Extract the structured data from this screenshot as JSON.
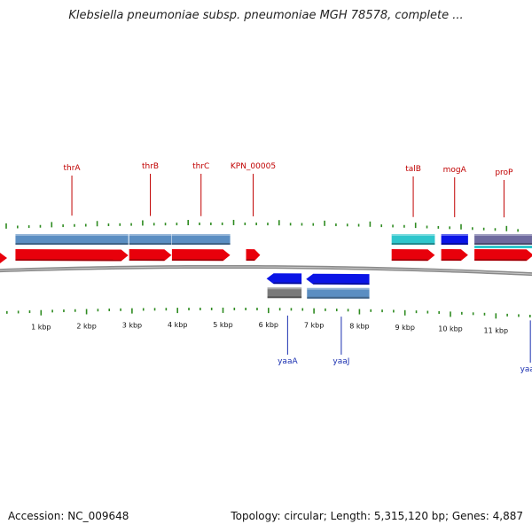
{
  "title": "Klebsiella pneumoniae subsp. pneumoniae MGH 78578, complete ...",
  "footer": {
    "accession": "Accession: NC_009648",
    "summary": "Topology: circular; Length: 5,315,120 bp; Genes: 4,887"
  },
  "colors": {
    "forward_gene": "#e8000b",
    "reverse_gene": "#0a14e6",
    "cds_steelblue": "#5b8ec2",
    "cds_cyan": "#2ec6cc",
    "cds_gray": "#7a7a7a",
    "trna_purple": "#6e6a9e",
    "label_forward": "#c00000",
    "label_reverse": "#1a2fb0",
    "backbone": "#8a8a8a",
    "tick": "#2e8b20"
  },
  "scale": {
    "labels": [
      "1 kbp",
      "2 kbp",
      "3 kbp",
      "4 kbp",
      "5 kbp",
      "6 kbp",
      "7 kbp",
      "8 kbp",
      "9 kbp",
      "10 kbp",
      "11 kbp"
    ]
  },
  "genes_forward": [
    {
      "name": "thrA",
      "start": 0.34,
      "end": 2.82
    },
    {
      "name": "thrB",
      "start": 2.84,
      "end": 3.77
    },
    {
      "name": "thrC",
      "start": 3.78,
      "end": 5.06
    },
    {
      "name": "KPN_00005",
      "start": 5.41,
      "end": 5.72
    },
    {
      "name": "talB",
      "start": 8.61,
      "end": 9.56
    },
    {
      "name": "mogA",
      "start": 9.7,
      "end": 10.29
    },
    {
      "name": "proP",
      "start": 10.43,
      "end": 11.73
    }
  ],
  "genes_reverse": [
    {
      "name": "yaaA",
      "start": 5.86,
      "end": 6.63
    },
    {
      "name": "yaaJ",
      "start": 6.73,
      "end": 8.12
    },
    {
      "name": "yaaH",
      "start": 11.78,
      "end": 12.3
    }
  ]
}
